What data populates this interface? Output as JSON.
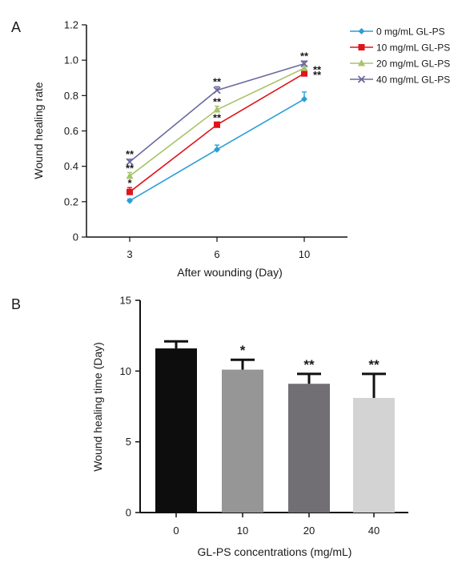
{
  "chart_data": [
    {
      "panel": "A",
      "type": "line",
      "xlabel": "After wounding (Day)",
      "ylabel": "Wound healing rate",
      "categories": [
        "3",
        "6",
        "10"
      ],
      "ylim": [
        0,
        1.2
      ],
      "yticks": [
        "0",
        "0.2",
        "0.4",
        "0.6",
        "0.8",
        "1.0",
        "1.2"
      ],
      "legend_position": "top-right",
      "grid": false,
      "series": [
        {
          "name": "0 mg/mL GL-PS",
          "color": "#2a9fd6",
          "marker": "diamond",
          "values": [
            0.205,
            0.495,
            0.78
          ],
          "errors": [
            0.01,
            0.025,
            0.04
          ],
          "stars": [
            "",
            "",
            ""
          ]
        },
        {
          "name": "10 mg/mL GL-PS",
          "color": "#e0141b",
          "marker": "square",
          "values": [
            0.255,
            0.635,
            0.925
          ],
          "errors": [
            0.025,
            0.015,
            0.02
          ],
          "stars": [
            "*",
            "**",
            "**"
          ]
        },
        {
          "name": "20 mg/mL GL-PS",
          "color": "#a8c46a",
          "marker": "triangle",
          "values": [
            0.345,
            0.72,
            0.955
          ],
          "errors": [
            0.02,
            0.02,
            0.015
          ],
          "stars": [
            "**",
            "**",
            "**"
          ]
        },
        {
          "name": "40 mg/mL GL-PS",
          "color": "#6b6a9e",
          "marker": "x",
          "values": [
            0.425,
            0.83,
            0.98
          ],
          "errors": [
            0.015,
            0.02,
            0.015
          ],
          "stars": [
            "**",
            "**",
            "**"
          ]
        }
      ]
    },
    {
      "panel": "B",
      "type": "bar",
      "xlabel": "GL-PS concentrations (mg/mL)",
      "ylabel": "Wound healing time (Day)",
      "categories": [
        "0",
        "10",
        "20",
        "40"
      ],
      "ylim": [
        0,
        15
      ],
      "yticks": [
        "0",
        "5",
        "10",
        "15"
      ],
      "grid": false,
      "values": [
        11.6,
        10.1,
        9.1,
        8.1
      ],
      "errors": [
        0.5,
        0.7,
        0.7,
        1.7
      ],
      "colors": [
        "#0d0d0d",
        "#969696",
        "#716f73",
        "#d3d3d3"
      ],
      "stars": [
        "",
        "*",
        "**",
        "**"
      ]
    }
  ]
}
